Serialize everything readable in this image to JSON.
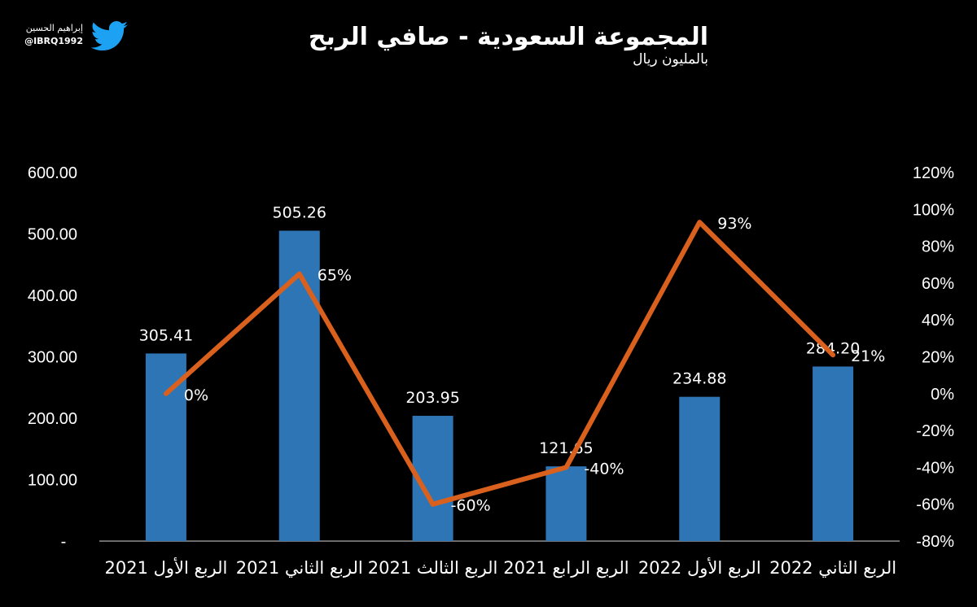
{
  "header": {
    "title": "المجموعة السعودية - صافي الربح",
    "unit": "بالمليون ريال"
  },
  "brand": {
    "name": "إبراهيم الحسين",
    "handle": "@IBRQ1992",
    "icon": "twitter-bird-icon",
    "icon_color": "#1DA1F2"
  },
  "chart_data": {
    "type": "bar",
    "categories": [
      "الربع الأول 2021",
      "الربع الثاني 2021",
      "الربع الثالث 2021",
      "الربع الرابع 2021",
      "الربع الأول 2022",
      "الربع الثاني 2022"
    ],
    "series": [
      {
        "values": [
          305.41,
          505.26,
          203.95,
          121.65,
          234.88,
          284.2
        ],
        "labels": [
          "305.41",
          "505.26",
          "203.95",
          "121.65",
          "234.88",
          "284.20"
        ],
        "color": "#2E75B6",
        "axis": "left",
        "type": "bar"
      },
      {
        "values": [
          0,
          65,
          -60,
          -40,
          93,
          21
        ],
        "labels": [
          "0%",
          "65%",
          "-60%",
          "-40%",
          "93%",
          "21%"
        ],
        "color": "#D9601D",
        "axis": "right",
        "type": "line"
      }
    ],
    "y_left": {
      "range": [
        0,
        600
      ],
      "ticks": [
        "-",
        "100.00",
        "200.00",
        "300.00",
        "400.00",
        "500.00",
        "600.00"
      ]
    },
    "y_right": {
      "range": [
        -80,
        120
      ],
      "ticks": [
        "-80%",
        "-60%",
        "-40%",
        "-20%",
        "0%",
        "20%",
        "40%",
        "60%",
        "80%",
        "100%",
        "120%"
      ]
    },
    "grid": false,
    "legend": "none"
  }
}
